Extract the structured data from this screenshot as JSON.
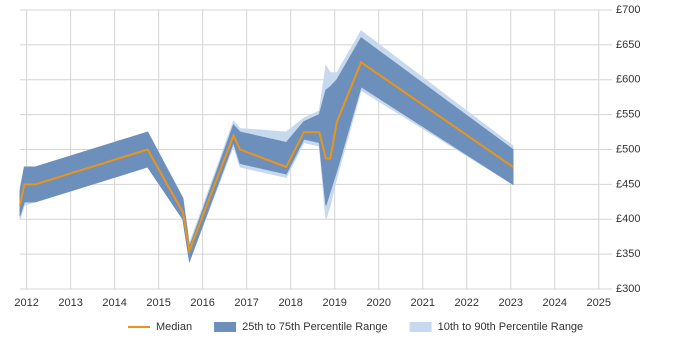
{
  "chart_data": {
    "type": "line",
    "x": [
      2011.85,
      2011.95,
      2012.2,
      2014.75,
      2015.55,
      2015.7,
      2016.7,
      2016.85,
      2017.9,
      2018.3,
      2018.65,
      2018.8,
      2018.9,
      2019.05,
      2019.6,
      2023.05
    ],
    "series": [
      {
        "name": "10th to 90th Percentile Range",
        "kind": "band",
        "color": "#c6d9ee",
        "lower": [
          400,
          420,
          425,
          475,
          400,
          340,
          505,
          475,
          460,
          510,
          505,
          400,
          420,
          460,
          585,
          450
        ],
        "upper": [
          445,
          475,
          475,
          525,
          430,
          365,
          540,
          530,
          525,
          545,
          555,
          620,
          610,
          610,
          670,
          505
        ]
      },
      {
        "name": "25th to 75th Percentile Range",
        "kind": "band",
        "color": "#6d8fbb",
        "lower": [
          405,
          425,
          425,
          475,
          400,
          340,
          510,
          480,
          465,
          515,
          510,
          420,
          440,
          470,
          590,
          450
        ],
        "upper": [
          440,
          475,
          475,
          525,
          430,
          360,
          535,
          525,
          510,
          540,
          550,
          585,
          590,
          600,
          660,
          500
        ]
      },
      {
        "name": "Median",
        "kind": "line",
        "color": "#e8951a",
        "values": [
          420,
          450,
          450,
          500,
          410,
          355,
          520,
          500,
          475,
          525,
          525,
          487,
          487,
          540,
          625,
          475
        ]
      }
    ],
    "legend_order": [
      2,
      1,
      0
    ],
    "xlim": [
      2011.85,
      2025.3
    ],
    "xticks": [
      2012,
      2013,
      2014,
      2015,
      2016,
      2017,
      2018,
      2019,
      2020,
      2021,
      2022,
      2023,
      2024,
      2025
    ],
    "ylim": [
      300,
      700
    ],
    "yticks": [
      {
        "value": 300,
        "label": "£300"
      },
      {
        "value": 350,
        "label": "£350"
      },
      {
        "value": 400,
        "label": "£400"
      },
      {
        "value": 450,
        "label": "£450"
      },
      {
        "value": 500,
        "label": "£500"
      },
      {
        "value": 550,
        "label": "£550"
      },
      {
        "value": 600,
        "label": "£600"
      },
      {
        "value": 650,
        "label": "£650"
      },
      {
        "value": 700,
        "label": "£700"
      }
    ],
    "y_axis_side": "right",
    "grid": true,
    "legend": "bottom"
  }
}
